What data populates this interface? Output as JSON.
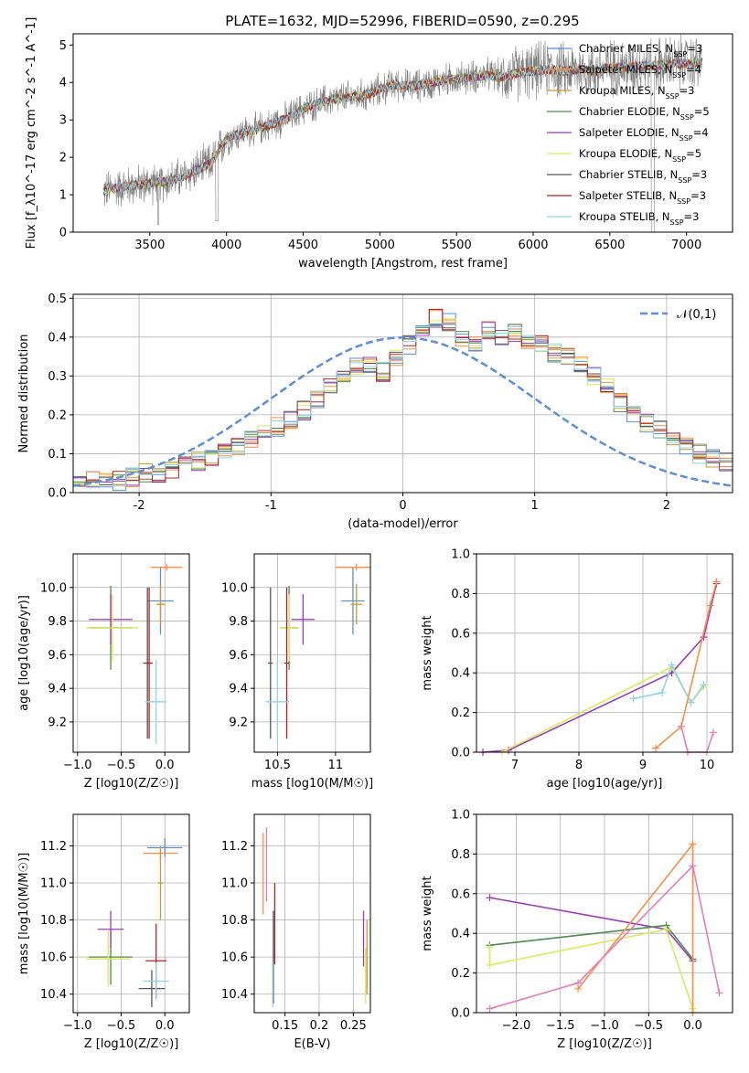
{
  "title": "PLATE=1632, MJD=52996, FIBERID=0590, z=0.295",
  "models": [
    {
      "name": "Chabrier MILES",
      "nssp": "3",
      "color": "#5b8fd6"
    },
    {
      "name": "Salpeter MILES",
      "nssp": "4",
      "color": "#ff8c42"
    },
    {
      "name": "Kroupa MILES",
      "nssp": "3",
      "color": "#c99a2e"
    },
    {
      "name": "Chabrier ELODIE",
      "nssp": "5",
      "color": "#4f8a4f"
    },
    {
      "name": "Salpeter ELODIE",
      "nssp": "4",
      "color": "#9b3cb7"
    },
    {
      "name": "Kroupa ELODIE",
      "nssp": "5",
      "color": "#d9ea5a"
    },
    {
      "name": "Chabrier STELIB",
      "nssp": "3",
      "color": "#555555"
    },
    {
      "name": "Salpeter STELIB",
      "nssp": "3",
      "color": "#b22222"
    },
    {
      "name": "Kroupa STELIB",
      "nssp": "3",
      "color": "#8fd3e8"
    }
  ],
  "chart_data": [
    {
      "id": "spectrum",
      "type": "line",
      "xlabel": "wavelength [Angstrom, rest frame]",
      "ylabel": "Flux [f_λ10^-17 erg cm^-2 s^-1 A^-1]",
      "xlim": [
        3000,
        7300
      ],
      "ylim": [
        0,
        5.3
      ],
      "xticks": [
        3500,
        4000,
        4500,
        5000,
        5500,
        6000,
        6500,
        7000
      ],
      "yticks": [
        0,
        1,
        2,
        3,
        4,
        5
      ],
      "legend": "top-right",
      "data_color": "#808080",
      "continuum": [
        [
          3200,
          1.1
        ],
        [
          3300,
          1.2
        ],
        [
          3400,
          1.25
        ],
        [
          3500,
          1.3
        ],
        [
          3600,
          1.35
        ],
        [
          3700,
          1.45
        ],
        [
          3800,
          1.65
        ],
        [
          3900,
          1.85
        ],
        [
          4000,
          2.5
        ],
        [
          4100,
          2.65
        ],
        [
          4200,
          2.75
        ],
        [
          4300,
          2.9
        ],
        [
          4400,
          3.05
        ],
        [
          4500,
          3.3
        ],
        [
          4600,
          3.45
        ],
        [
          4700,
          3.55
        ],
        [
          4800,
          3.6
        ],
        [
          4900,
          3.65
        ],
        [
          5000,
          3.8
        ],
        [
          5100,
          3.95
        ],
        [
          5200,
          3.9
        ],
        [
          5300,
          3.95
        ],
        [
          5400,
          4.05
        ],
        [
          5500,
          4.1
        ],
        [
          5600,
          4.15
        ],
        [
          5700,
          4.2
        ],
        [
          5800,
          4.15
        ],
        [
          5900,
          4.25
        ],
        [
          6000,
          4.3
        ],
        [
          6100,
          4.35
        ],
        [
          6200,
          4.3
        ],
        [
          6300,
          4.35
        ],
        [
          6400,
          4.3
        ],
        [
          6500,
          4.4
        ],
        [
          6600,
          4.4
        ],
        [
          6700,
          4.45
        ],
        [
          6800,
          4.45
        ],
        [
          6900,
          4.5
        ],
        [
          7000,
          4.5
        ],
        [
          7100,
          4.55
        ]
      ]
    },
    {
      "id": "residuals",
      "type": "area",
      "xlabel": "(data-model)/error",
      "ylabel": "Normed distribution",
      "xlim": [
        -2.5,
        2.5
      ],
      "ylim": [
        0,
        0.51
      ],
      "xticks": [
        -2,
        -1,
        0,
        1,
        2
      ],
      "yticks": [
        0.0,
        0.1,
        0.2,
        0.3,
        0.4,
        0.5
      ],
      "legend": "top-right",
      "gaussian_label": "𝒩(0,1)",
      "gaussian_color": "#5b8fd6",
      "bin_width": 0.1,
      "histogram": [
        0.02,
        0.03,
        0.03,
        0.03,
        0.04,
        0.05,
        0.05,
        0.06,
        0.07,
        0.08,
        0.09,
        0.1,
        0.12,
        0.14,
        0.15,
        0.17,
        0.19,
        0.21,
        0.24,
        0.27,
        0.3,
        0.33,
        0.33,
        0.31,
        0.35,
        0.38,
        0.42,
        0.45,
        0.44,
        0.4,
        0.38,
        0.42,
        0.4,
        0.41,
        0.39,
        0.38,
        0.36,
        0.35,
        0.33,
        0.3,
        0.27,
        0.23,
        0.2,
        0.18,
        0.16,
        0.14,
        0.12,
        0.1,
        0.09,
        0.08
      ]
    },
    {
      "id": "age_vs_Z",
      "type": "scatter",
      "xlabel": "Z [log10(Z/Z☉)]",
      "ylabel": "age [log10(age/yr)]",
      "xlim": [
        -1.05,
        0.28
      ],
      "ylim": [
        9.02,
        10.2
      ],
      "xticks": [
        -1.0,
        -0.5,
        0.0
      ],
      "xticklabels": [
        "−1.0",
        "−0.5",
        "0.0"
      ],
      "yticks": [
        9.2,
        9.4,
        9.6,
        9.8,
        10.0
      ],
      "points": [
        {
          "m": 0,
          "x": -0.05,
          "y": 9.92,
          "xerr": 0.15,
          "yerr": 0.2
        },
        {
          "m": 1,
          "x": 0.02,
          "y": 10.12,
          "xerr": 0.18,
          "yerr": 0.02
        },
        {
          "m": 2,
          "x": -0.05,
          "y": 9.9,
          "xerr": 0.05,
          "yerr": 0.12
        },
        {
          "m": 3,
          "x": -0.62,
          "y": 9.76,
          "xerr": 0.25,
          "yerr": 0.25
        },
        {
          "m": 4,
          "x": -0.62,
          "y": 9.81,
          "xerr": 0.25,
          "yerr": 0.15
        },
        {
          "m": 5,
          "x": -0.6,
          "y": 9.76,
          "xerr": 0.3,
          "yerr": 0.2
        },
        {
          "m": 6,
          "x": -0.2,
          "y": 9.55,
          "xerr": 0.05,
          "yerr": 0.45
        },
        {
          "m": 7,
          "x": -0.18,
          "y": 9.55,
          "xerr": 0.04,
          "yerr": 0.45
        },
        {
          "m": 8,
          "x": -0.1,
          "y": 9.32,
          "xerr": 0.12,
          "yerr": 0.25
        }
      ]
    },
    {
      "id": "age_vs_mass",
      "type": "scatter",
      "xlabel": "mass [log10(M/M☉)]",
      "ylabel": "",
      "xlim": [
        10.3,
        11.3
      ],
      "ylim": [
        9.02,
        10.2
      ],
      "xticks": [
        10.5,
        11.0
      ],
      "yticks": [
        9.2,
        9.4,
        9.6,
        9.8,
        10.0
      ],
      "points": [
        {
          "m": 0,
          "x": 11.15,
          "y": 9.92,
          "xerr": 0.1,
          "yerr": 0.2
        },
        {
          "m": 1,
          "x": 11.18,
          "y": 10.12,
          "xerr": 0.18,
          "yerr": 0.02
        },
        {
          "m": 2,
          "x": 11.18,
          "y": 9.9,
          "xerr": 0.05,
          "yerr": 0.12
        },
        {
          "m": 3,
          "x": 10.6,
          "y": 9.76,
          "xerr": 0.08,
          "yerr": 0.25
        },
        {
          "m": 4,
          "x": 10.72,
          "y": 9.81,
          "xerr": 0.1,
          "yerr": 0.15
        },
        {
          "m": 5,
          "x": 10.6,
          "y": 9.76,
          "xerr": 0.08,
          "yerr": 0.2
        },
        {
          "m": 6,
          "x": 10.44,
          "y": 9.55,
          "xerr": 0.02,
          "yerr": 0.45
        },
        {
          "m": 7,
          "x": 10.58,
          "y": 9.55,
          "xerr": 0.02,
          "yerr": 0.45
        },
        {
          "m": 8,
          "x": 10.5,
          "y": 9.32,
          "xerr": 0.1,
          "yerr": 0.25
        }
      ]
    },
    {
      "id": "mass_weight_vs_age",
      "type": "line",
      "xlabel": "age [log10(age/yr)]",
      "ylabel": "mass weight",
      "xlim": [
        6.4,
        10.4
      ],
      "ylim": [
        0,
        1.0
      ],
      "xticks": [
        7,
        8,
        9,
        10
      ],
      "yticks": [
        0.0,
        0.2,
        0.4,
        0.6,
        0.8,
        1.0
      ],
      "series": [
        {
          "m": 4,
          "points": [
            [
              6.5,
              0.0
            ],
            [
              6.9,
              0.01
            ],
            [
              9.45,
              0.4
            ],
            [
              9.95,
              0.58
            ],
            [
              10.15,
              0.85
            ]
          ]
        },
        {
          "m": 5,
          "points": [
            [
              6.8,
              0.0
            ],
            [
              9.45,
              0.43
            ],
            [
              9.75,
              0.25
            ],
            [
              9.95,
              0.33
            ]
          ]
        },
        {
          "m": 8,
          "points": [
            [
              8.85,
              0.27
            ],
            [
              9.3,
              0.3
            ],
            [
              9.45,
              0.44
            ],
            [
              9.75,
              0.25
            ],
            [
              9.95,
              0.34
            ]
          ]
        },
        {
          "m": 1,
          "points": [
            [
              9.2,
              0.02
            ],
            [
              9.6,
              0.13
            ],
            [
              10.05,
              0.74
            ],
            [
              10.15,
              0.86
            ]
          ]
        },
        {
          "m": 9,
          "points": [
            [
              9.6,
              0.13
            ],
            [
              9.7,
              0.0
            ],
            [
              10.0,
              0.0
            ],
            [
              10.1,
              0.1
            ]
          ]
        }
      ]
    },
    {
      "id": "mass_vs_Z",
      "type": "scatter",
      "xlabel": "Z [log10(Z/Z☉)]",
      "ylabel": "mass [log10(M/M☉)]",
      "xlim": [
        -1.05,
        0.28
      ],
      "ylim": [
        10.3,
        11.37
      ],
      "xticks": [
        -1.0,
        -0.5,
        0.0
      ],
      "xticklabels": [
        "−1.0",
        "−0.5",
        "0.0"
      ],
      "yticks": [
        10.4,
        10.6,
        10.8,
        11.0,
        11.2
      ],
      "points": [
        {
          "m": 0,
          "x": 0.0,
          "y": 11.19,
          "xerr": 0.2,
          "yerr": 0.05
        },
        {
          "m": 1,
          "x": -0.05,
          "y": 11.16,
          "xerr": 0.2,
          "yerr": 0.03
        },
        {
          "m": 2,
          "x": -0.05,
          "y": 11.0,
          "xerr": 0.03,
          "yerr": 0.2
        },
        {
          "m": 3,
          "x": -0.62,
          "y": 10.6,
          "xerr": 0.25,
          "yerr": 0.15
        },
        {
          "m": 4,
          "x": -0.62,
          "y": 10.75,
          "xerr": 0.15,
          "yerr": 0.1
        },
        {
          "m": 5,
          "x": -0.65,
          "y": 10.59,
          "xerr": 0.25,
          "yerr": 0.15
        },
        {
          "m": 6,
          "x": -0.15,
          "y": 10.43,
          "xerr": 0.15,
          "yerr": 0.1
        },
        {
          "m": 7,
          "x": -0.1,
          "y": 10.58,
          "xerr": 0.12,
          "yerr": 0.2
        },
        {
          "m": 8,
          "x": -0.1,
          "y": 10.47,
          "xerr": 0.15,
          "yerr": 0.1
        }
      ]
    },
    {
      "id": "mass_vs_ebv",
      "type": "scatter",
      "xlabel": "E(B-V)",
      "ylabel": "",
      "xlim": [
        0.105,
        0.275
      ],
      "ylim": [
        10.3,
        11.37
      ],
      "xticks": [
        0.15,
        0.2,
        0.25
      ],
      "yticks": [
        10.4,
        10.6,
        10.8,
        11.0,
        11.2
      ],
      "points": [
        {
          "m": 1,
          "x": 0.118,
          "y": 11.05,
          "xerr": 0,
          "yerr": 0.22
        },
        {
          "m": 9,
          "x": 0.123,
          "y": 11.1,
          "xerr": 0,
          "yerr": 0.2
        },
        {
          "m": 6,
          "x": 0.133,
          "y": 10.6,
          "xerr": 0,
          "yerr": 0.25
        },
        {
          "m": 7,
          "x": 0.135,
          "y": 10.78,
          "xerr": 0,
          "yerr": 0.22
        },
        {
          "m": 8,
          "x": 0.132,
          "y": 10.45,
          "xerr": 0,
          "yerr": 0.12
        },
        {
          "m": 4,
          "x": 0.265,
          "y": 10.7,
          "xerr": 0,
          "yerr": 0.15
        },
        {
          "m": 5,
          "x": 0.268,
          "y": 10.5,
          "xerr": 0,
          "yerr": 0.15
        },
        {
          "m": 2,
          "x": 0.27,
          "y": 10.6,
          "xerr": 0,
          "yerr": 0.2
        }
      ]
    },
    {
      "id": "mass_weight_vs_Z",
      "type": "line",
      "xlabel": "Z [log10(Z/Z☉)]",
      "ylabel": "mass weight",
      "xlim": [
        -2.45,
        0.45
      ],
      "ylim": [
        0,
        1.0
      ],
      "xticks": [
        -2.0,
        -1.5,
        -1.0,
        -0.5,
        0.0
      ],
      "xticklabels": [
        "−2.0",
        "−1.5",
        "−1.0",
        "−0.5",
        "0.0"
      ],
      "yticks": [
        0.0,
        0.2,
        0.4,
        0.6,
        0.8,
        1.0
      ],
      "series": [
        {
          "m": 4,
          "points": [
            [
              -2.3,
              0.58
            ],
            [
              -0.3,
              0.42
            ],
            [
              0.0,
              0.26
            ]
          ]
        },
        {
          "m": 3,
          "points": [
            [
              -2.3,
              0.34
            ],
            [
              -0.3,
              0.44
            ],
            [
              0.0,
              0.27
            ]
          ]
        },
        {
          "m": 5,
          "points": [
            [
              -2.3,
              0.33
            ],
            [
              -2.3,
              0.24
            ],
            [
              -0.3,
              0.42
            ],
            [
              0.0,
              0.02
            ]
          ]
        },
        {
          "m": 1,
          "points": [
            [
              -1.3,
              0.12
            ],
            [
              0.0,
              0.85
            ],
            [
              0.0,
              0.0
            ]
          ]
        },
        {
          "m": 9,
          "points": [
            [
              -2.3,
              0.02
            ],
            [
              -1.3,
              0.15
            ],
            [
              0.0,
              0.74
            ],
            [
              0.3,
              0.1
            ]
          ]
        }
      ]
    }
  ],
  "extra_colors": {
    "9": "#e37fb8"
  }
}
